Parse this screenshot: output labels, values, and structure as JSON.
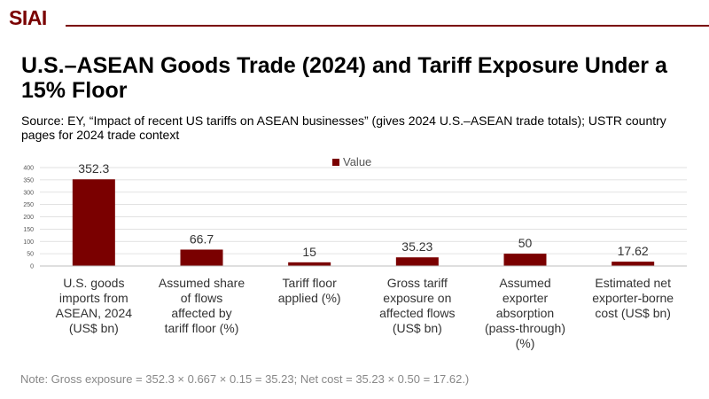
{
  "brand": {
    "logo_text": "SIAI",
    "accent_color": "#7a0000"
  },
  "header": {
    "title": "U.S.–ASEAN Goods Trade (2024) and Tariff Exposure Under a 15% Floor",
    "source": "Source: EY, “Impact of recent US tariffs on ASEAN businesses” (gives 2024 U.S.–ASEAN trade totals); USTR country pages for 2024 trade context"
  },
  "footer": {
    "note": "Note: Gross exposure = 352.3 × 0.667 × 0.15 = 35.23; Net cost = 35.23 × 0.50 = 17.62.)"
  },
  "chart_data": {
    "type": "bar",
    "title": "",
    "xlabel": "",
    "ylabel": "",
    "ylim": [
      0,
      400
    ],
    "yticks": [
      0,
      50,
      100,
      150,
      200,
      250,
      300,
      350,
      400
    ],
    "grid": true,
    "legend": {
      "position": "top-center",
      "entries": [
        "Value"
      ]
    },
    "bar_color": "#7a0000",
    "categories": [
      [
        "U.S. goods",
        "imports from",
        "ASEAN, 2024",
        "(US$ bn)"
      ],
      [
        "Assumed share",
        "of flows",
        "affected by",
        "tariff floor (%)"
      ],
      [
        "Tariff floor",
        "applied (%)"
      ],
      [
        "Gross tariff",
        "exposure on",
        "affected flows",
        "(US$ bn)"
      ],
      [
        "Assumed",
        "exporter",
        "absorption",
        "(pass-through)",
        "(%)"
      ],
      [
        "Estimated net",
        "exporter-borne",
        "cost (US$ bn)"
      ]
    ],
    "series": [
      {
        "name": "Value",
        "values": [
          352.3,
          66.7,
          15,
          35.23,
          50,
          17.62
        ]
      }
    ]
  }
}
